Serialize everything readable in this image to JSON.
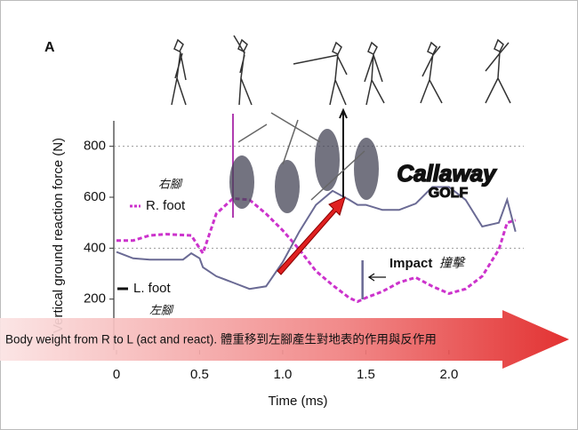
{
  "panel_label": "A",
  "chart_data": {
    "type": "line",
    "xlabel": "Time (ms)",
    "ylabel": "Vertical ground reaction force (N)",
    "xlim": [
      0,
      2.45
    ],
    "ylim": [
      0,
      900
    ],
    "xticks": [
      0,
      0.5,
      {
        "value": 1,
        "label": "1.0"
      },
      1.5,
      {
        "value": 2,
        "label": "2.0"
      }
    ],
    "yticks": [
      200,
      400,
      600,
      800
    ],
    "grid_lines": [
      400,
      800
    ],
    "series": [
      {
        "name": "R. foot",
        "color": "#cc33cc",
        "dashed": true,
        "x": [
          0,
          0.1,
          0.2,
          0.3,
          0.45,
          0.52,
          0.6,
          0.7,
          0.8,
          0.9,
          1.0,
          1.1,
          1.2,
          1.3,
          1.4,
          1.45,
          1.5,
          1.6,
          1.7,
          1.8,
          1.9,
          2.0,
          2.1,
          2.2,
          2.3,
          2.35,
          2.4
        ],
        "values": [
          430,
          430,
          450,
          455,
          450,
          380,
          535,
          595,
          590,
          535,
          470,
          395,
          310,
          255,
          205,
          190,
          205,
          230,
          265,
          285,
          250,
          222,
          240,
          290,
          395,
          500,
          510
        ]
      },
      {
        "name": "L. foot",
        "color": "#6a6a94",
        "dashed": false,
        "x": [
          0,
          0.1,
          0.2,
          0.3,
          0.4,
          0.45,
          0.5,
          0.52,
          0.6,
          0.7,
          0.8,
          0.9,
          1.0,
          1.1,
          1.2,
          1.3,
          1.4,
          1.45,
          1.5,
          1.6,
          1.7,
          1.8,
          1.9,
          2.0,
          2.1,
          2.2,
          2.3,
          2.35,
          2.4
        ],
        "values": [
          385,
          360,
          355,
          355,
          355,
          380,
          360,
          325,
          290,
          265,
          240,
          250,
          345,
          465,
          570,
          625,
          590,
          570,
          570,
          550,
          550,
          575,
          640,
          640,
          590,
          485,
          500,
          590,
          465
        ]
      }
    ],
    "series_labels_zh": [
      "右腳",
      "左腳"
    ],
    "impact_label": "Impact",
    "impact_label_zh": "撞擊",
    "logo": [
      "Callaway",
      "GOLF"
    ],
    "banner": "Body weight from R to L (act and react).  體重移到左腳產生對地表的作用與反作用"
  }
}
